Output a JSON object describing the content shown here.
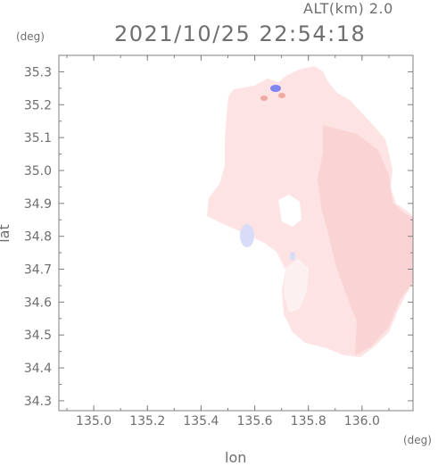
{
  "header": {
    "altitude": "ALT(km) 2.0",
    "datetime": "2021/10/25 22:54:18"
  },
  "chart_data": {
    "type": "heatmap",
    "xlabel": "lon",
    "ylabel": "lat",
    "x_unit": "(deg)",
    "y_unit": "(deg)",
    "xlim": [
      134.87,
      136.19
    ],
    "ylim": [
      34.27,
      35.35
    ],
    "x_ticks": [
      135.0,
      135.2,
      135.4,
      135.6,
      135.8,
      136.0
    ],
    "x_tick_labels": [
      "135.0",
      "135.2",
      "135.4",
      "135.6",
      "135.8",
      "136.0"
    ],
    "y_ticks": [
      34.3,
      34.4,
      34.5,
      34.6,
      34.7,
      34.8,
      34.9,
      35.0,
      35.1,
      35.2,
      35.3
    ],
    "y_tick_labels": [
      "34.3",
      "34.4",
      "34.5",
      "34.6",
      "34.7",
      "34.8",
      "34.9",
      "35.0",
      "35.1",
      "35.2",
      "35.3"
    ],
    "grid": false,
    "colors": {
      "field_main": "#fde3e3",
      "field_dark": "#fad4d4",
      "field_light": "#fdf0f0",
      "positive_spot": "#f0a9a0",
      "negative_spot": "#7f86f0",
      "negative_light": "#d8dcf8",
      "axes": "#808080",
      "text": "#6e6e6e"
    }
  }
}
